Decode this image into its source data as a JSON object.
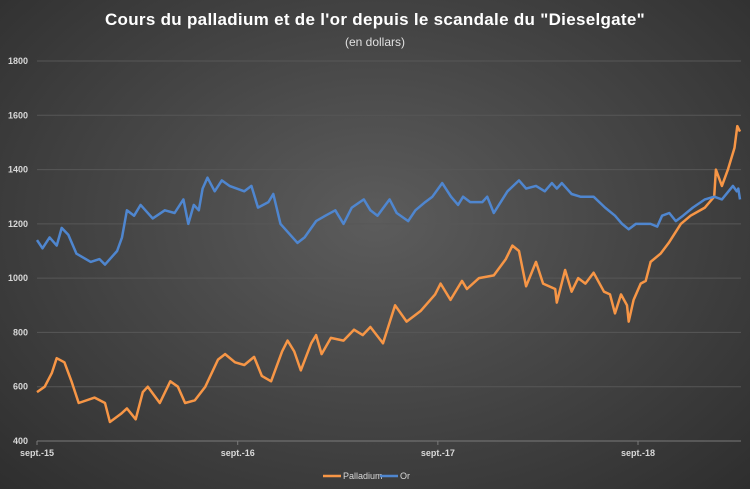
{
  "chart_data": {
    "type": "line",
    "title": "Cours du palladium et de l'or depuis le scandale du \"Dieselgate\"",
    "subtitle": "(en dollars)",
    "xlabel": "",
    "ylabel": "",
    "ylim": [
      400,
      1800
    ],
    "y_ticks": [
      "400",
      "600",
      "800",
      "1000",
      "1200",
      "1400",
      "1600",
      "1800"
    ],
    "x_ticks": [
      {
        "label": "sept.-15",
        "date": "2015-09-01"
      },
      {
        "label": "sept.-16",
        "date": "2016-09-01"
      },
      {
        "label": "sept.-17",
        "date": "2017-09-01"
      },
      {
        "label": "sept.-18",
        "date": "2018-09-01"
      }
    ],
    "grid": true,
    "legend_position": "bottom",
    "series": [
      {
        "name": "Palladium",
        "color": "#F79646",
        "points": [
          [
            "2015-09-01",
            580
          ],
          [
            "2015-09-15",
            600
          ],
          [
            "2015-09-28",
            650
          ],
          [
            "2015-10-07",
            705
          ],
          [
            "2015-10-21",
            690
          ],
          [
            "2015-11-03",
            620
          ],
          [
            "2015-11-16",
            540
          ],
          [
            "2015-12-15",
            560
          ],
          [
            "2016-01-03",
            540
          ],
          [
            "2016-01-12",
            470
          ],
          [
            "2016-02-01",
            500
          ],
          [
            "2016-02-12",
            520
          ],
          [
            "2016-02-28",
            480
          ],
          [
            "2016-03-12",
            580
          ],
          [
            "2016-03-21",
            600
          ],
          [
            "2016-04-12",
            540
          ],
          [
            "2016-05-01",
            620
          ],
          [
            "2016-05-15",
            600
          ],
          [
            "2016-05-28",
            540
          ],
          [
            "2016-06-15",
            550
          ],
          [
            "2016-07-04",
            600
          ],
          [
            "2016-07-27",
            700
          ],
          [
            "2016-08-09",
            720
          ],
          [
            "2016-08-27",
            690
          ],
          [
            "2016-09-13",
            680
          ],
          [
            "2016-10-01",
            710
          ],
          [
            "2016-10-15",
            640
          ],
          [
            "2016-11-01",
            620
          ],
          [
            "2016-11-21",
            730
          ],
          [
            "2016-12-01",
            770
          ],
          [
            "2016-12-13",
            730
          ],
          [
            "2016-12-25",
            660
          ],
          [
            "2017-01-13",
            760
          ],
          [
            "2017-01-22",
            790
          ],
          [
            "2017-02-01",
            720
          ],
          [
            "2017-02-18",
            780
          ],
          [
            "2017-03-13",
            770
          ],
          [
            "2017-04-01",
            810
          ],
          [
            "2017-04-17",
            790
          ],
          [
            "2017-05-01",
            820
          ],
          [
            "2017-05-24",
            760
          ],
          [
            "2017-06-15",
            900
          ],
          [
            "2017-07-06",
            840
          ],
          [
            "2017-08-01",
            880
          ],
          [
            "2017-08-27",
            940
          ],
          [
            "2017-09-06",
            980
          ],
          [
            "2017-09-24",
            920
          ],
          [
            "2017-10-15",
            990
          ],
          [
            "2017-10-24",
            960
          ],
          [
            "2017-11-15",
            1000
          ],
          [
            "2017-12-12",
            1010
          ],
          [
            "2018-01-03",
            1070
          ],
          [
            "2018-01-15",
            1120
          ],
          [
            "2018-01-27",
            1100
          ],
          [
            "2018-02-09",
            970
          ],
          [
            "2018-02-27",
            1060
          ],
          [
            "2018-03-12",
            980
          ],
          [
            "2018-04-03",
            960
          ],
          [
            "2018-04-06",
            910
          ],
          [
            "2018-04-21",
            1030
          ],
          [
            "2018-05-03",
            950
          ],
          [
            "2018-05-15",
            1000
          ],
          [
            "2018-05-28",
            980
          ],
          [
            "2018-06-12",
            1020
          ],
          [
            "2018-07-01",
            950
          ],
          [
            "2018-07-12",
            940
          ],
          [
            "2018-07-21",
            870
          ],
          [
            "2018-08-01",
            940
          ],
          [
            "2018-08-12",
            900
          ],
          [
            "2018-08-15",
            840
          ],
          [
            "2018-08-24",
            920
          ],
          [
            "2018-09-06",
            980
          ],
          [
            "2018-09-15",
            990
          ],
          [
            "2018-09-24",
            1060
          ],
          [
            "2018-10-12",
            1090
          ],
          [
            "2018-10-27",
            1130
          ],
          [
            "2018-11-18",
            1200
          ],
          [
            "2018-12-06",
            1230
          ],
          [
            "2019-01-01",
            1260
          ],
          [
            "2019-01-18",
            1300
          ],
          [
            "2019-01-21",
            1400
          ],
          [
            "2019-02-01",
            1340
          ],
          [
            "2019-02-12",
            1400
          ],
          [
            "2019-02-24",
            1480
          ],
          [
            "2019-03-01",
            1560
          ],
          [
            "2019-03-06",
            1540
          ]
        ]
      },
      {
        "name": "Or",
        "color": "#4F86CF",
        "points": [
          [
            "2015-09-01",
            1140
          ],
          [
            "2015-09-11",
            1110
          ],
          [
            "2015-09-24",
            1150
          ],
          [
            "2015-10-07",
            1120
          ],
          [
            "2015-10-16",
            1185
          ],
          [
            "2015-10-28",
            1160
          ],
          [
            "2015-11-12",
            1090
          ],
          [
            "2015-12-08",
            1060
          ],
          [
            "2015-12-24",
            1070
          ],
          [
            "2016-01-03",
            1050
          ],
          [
            "2016-01-25",
            1100
          ],
          [
            "2016-02-03",
            1150
          ],
          [
            "2016-02-12",
            1250
          ],
          [
            "2016-02-25",
            1230
          ],
          [
            "2016-03-08",
            1270
          ],
          [
            "2016-03-30",
            1220
          ],
          [
            "2016-04-21",
            1250
          ],
          [
            "2016-05-09",
            1240
          ],
          [
            "2016-05-25",
            1290
          ],
          [
            "2016-06-03",
            1200
          ],
          [
            "2016-06-13",
            1270
          ],
          [
            "2016-06-22",
            1250
          ],
          [
            "2016-06-29",
            1330
          ],
          [
            "2016-07-08",
            1370
          ],
          [
            "2016-07-21",
            1320
          ],
          [
            "2016-08-03",
            1360
          ],
          [
            "2016-08-17",
            1340
          ],
          [
            "2016-09-13",
            1320
          ],
          [
            "2016-09-26",
            1340
          ],
          [
            "2016-10-08",
            1260
          ],
          [
            "2016-10-27",
            1280
          ],
          [
            "2016-11-05",
            1310
          ],
          [
            "2016-11-18",
            1200
          ],
          [
            "2016-12-19",
            1130
          ],
          [
            "2017-01-01",
            1150
          ],
          [
            "2017-01-22",
            1210
          ],
          [
            "2017-02-08",
            1230
          ],
          [
            "2017-02-26",
            1250
          ],
          [
            "2017-03-13",
            1200
          ],
          [
            "2017-03-28",
            1260
          ],
          [
            "2017-04-19",
            1290
          ],
          [
            "2017-05-01",
            1250
          ],
          [
            "2017-05-14",
            1230
          ],
          [
            "2017-06-05",
            1290
          ],
          [
            "2017-06-18",
            1240
          ],
          [
            "2017-07-09",
            1210
          ],
          [
            "2017-07-22",
            1250
          ],
          [
            "2017-08-09",
            1280
          ],
          [
            "2017-08-22",
            1300
          ],
          [
            "2017-09-09",
            1350
          ],
          [
            "2017-09-25",
            1300
          ],
          [
            "2017-10-08",
            1270
          ],
          [
            "2017-10-17",
            1300
          ],
          [
            "2017-10-30",
            1280
          ],
          [
            "2017-11-21",
            1280
          ],
          [
            "2017-11-30",
            1300
          ],
          [
            "2017-12-12",
            1240
          ],
          [
            "2018-01-06",
            1320
          ],
          [
            "2018-01-27",
            1360
          ],
          [
            "2018-02-09",
            1330
          ],
          [
            "2018-02-27",
            1340
          ],
          [
            "2018-03-15",
            1320
          ],
          [
            "2018-03-28",
            1350
          ],
          [
            "2018-04-06",
            1330
          ],
          [
            "2018-04-15",
            1350
          ],
          [
            "2018-05-03",
            1310
          ],
          [
            "2018-05-19",
            1300
          ],
          [
            "2018-06-12",
            1300
          ],
          [
            "2018-07-03",
            1260
          ],
          [
            "2018-07-21",
            1230
          ],
          [
            "2018-08-03",
            1200
          ],
          [
            "2018-08-15",
            1180
          ],
          [
            "2018-08-28",
            1200
          ],
          [
            "2018-09-24",
            1200
          ],
          [
            "2018-10-06",
            1190
          ],
          [
            "2018-10-15",
            1230
          ],
          [
            "2018-10-28",
            1240
          ],
          [
            "2018-11-09",
            1210
          ],
          [
            "2018-11-22",
            1230
          ],
          [
            "2018-12-10",
            1260
          ],
          [
            "2019-01-01",
            1290
          ],
          [
            "2019-01-18",
            1300
          ],
          [
            "2019-02-01",
            1290
          ],
          [
            "2019-02-21",
            1340
          ],
          [
            "2019-02-28",
            1320
          ],
          [
            "2019-03-03",
            1330
          ],
          [
            "2019-03-06",
            1290
          ]
        ]
      }
    ]
  }
}
